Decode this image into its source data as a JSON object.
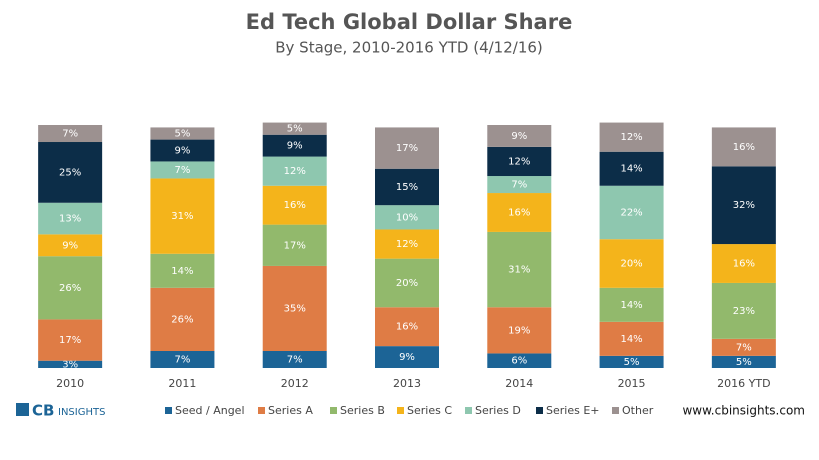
{
  "chart_data": {
    "type": "stacked-bar",
    "title": "Ed Tech Global Dollar Share",
    "subtitle": "By Stage, 2010-2016 YTD (4/12/16)",
    "categories": [
      "2010",
      "2011",
      "2012",
      "2013",
      "2014",
      "2015",
      "2016 YTD"
    ],
    "series": [
      {
        "name": "Seed / Angel",
        "color": "#1c6496",
        "values": [
          3,
          7,
          7,
          9,
          6,
          5,
          5
        ],
        "value_labels": [
          "3%",
          "7%",
          "7%",
          "9%",
          "6%",
          "5%",
          "5%"
        ]
      },
      {
        "name": "Series A",
        "color": "#df7c45",
        "values": [
          17,
          26,
          35,
          16,
          19,
          14,
          7
        ],
        "value_labels": [
          "17%",
          "26%",
          "35%",
          "16%",
          "19%",
          "14%",
          "7%"
        ]
      },
      {
        "name": "Series B",
        "color": "#92b96c",
        "values": [
          26,
          14,
          17,
          20,
          31,
          14,
          23
        ],
        "value_labels": [
          "26%",
          "14%",
          "17%",
          "20%",
          "31%",
          "14%",
          "23%"
        ]
      },
      {
        "name": "Series C",
        "color": "#f4b41b",
        "values": [
          9,
          31,
          16,
          12,
          16,
          20,
          16
        ],
        "value_labels": [
          "9%",
          "31%",
          "16%",
          "12%",
          "16%",
          "20%",
          "16%"
        ]
      },
      {
        "name": "Series D",
        "color": "#8ec7af",
        "values": [
          13,
          7,
          12,
          10,
          7,
          22,
          null
        ],
        "value_labels": [
          "13%",
          "7%",
          "12%",
          "10%",
          "7%",
          "22%",
          null
        ]
      },
      {
        "name": "Series E+",
        "color": "#0c2d48",
        "values": [
          25,
          9,
          9,
          15,
          12,
          14,
          32
        ],
        "value_labels": [
          "25%",
          "9%",
          "9%",
          "15%",
          "12%",
          "14%",
          "32%"
        ]
      },
      {
        "name": "Other",
        "color": "#9c9190",
        "values": [
          7,
          5,
          5,
          17,
          9,
          12,
          16
        ],
        "value_labels": [
          "7%",
          "5%",
          "5%",
          "17%",
          "9%",
          "12%",
          "16%"
        ]
      }
    ]
  },
  "footer": {
    "logo_mark": "CB",
    "logo_text": "INSIGHTS",
    "source": "www.cbinsights.com"
  }
}
